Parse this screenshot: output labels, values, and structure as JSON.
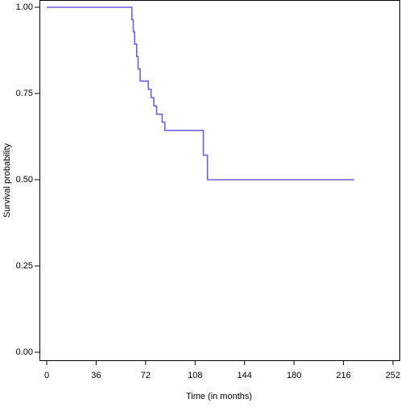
{
  "chart_data": {
    "type": "step",
    "x_label": "Time (in months)",
    "y_label": "Survival probability",
    "series": [
      {
        "color": "#6f60e0",
        "x": [
          0,
          62,
          63,
          64,
          65.5,
          66.5,
          68,
          74,
          76,
          78,
          80,
          84,
          86,
          114,
          117,
          224
        ],
        "values": [
          1,
          0.964,
          0.929,
          0.893,
          0.857,
          0.821,
          0.786,
          0.762,
          0.738,
          0.714,
          0.69,
          0.667,
          0.643,
          0.571,
          0.5,
          0.5
        ]
      }
    ],
    "xlim": [
      0,
      252
    ],
    "xticks": [
      0,
      36,
      72,
      108,
      144,
      180,
      216,
      252
    ],
    "ylim": [
      0,
      1
    ],
    "yticks": [
      {
        "value": 0,
        "label": "0.00"
      },
      {
        "value": 0.25,
        "label": "0.25"
      },
      {
        "value": 0.5,
        "label": "0.50"
      },
      {
        "value": 0.75,
        "label": "0.75"
      },
      {
        "value": 1,
        "label": "1.00"
      }
    ]
  }
}
